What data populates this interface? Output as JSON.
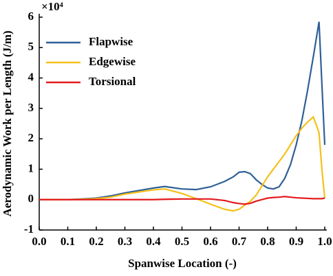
{
  "chart_data": {
    "type": "line",
    "multiplier": "×10⁴",
    "x_label": "Spanwise Location (-)",
    "y_label": "Aerodynamic Work per Length (J/m)",
    "x": [
      0,
      0.05,
      0.1,
      0.15,
      0.2,
      0.25,
      0.3,
      0.35,
      0.4,
      0.44,
      0.5,
      0.55,
      0.6,
      0.65,
      0.68,
      0.7,
      0.72,
      0.74,
      0.76,
      0.78,
      0.8,
      0.82,
      0.84,
      0.86,
      0.88,
      0.9,
      0.92,
      0.94,
      0.96,
      0.98,
      0.99,
      1.0
    ],
    "series": [
      {
        "name": "Flapwise",
        "color": "#2e5f97",
        "values": [
          0,
          0,
          0,
          0.02,
          0.05,
          0.12,
          0.22,
          0.3,
          0.38,
          0.43,
          0.35,
          0.33,
          0.42,
          0.6,
          0.75,
          0.9,
          0.92,
          0.85,
          0.65,
          0.5,
          0.38,
          0.35,
          0.42,
          0.7,
          1.15,
          1.8,
          2.6,
          3.6,
          4.7,
          5.85,
          3.8,
          1.8
        ]
      },
      {
        "name": "Edgewise",
        "color": "#f5c01a",
        "values": [
          0,
          0,
          0,
          0.01,
          0.03,
          0.08,
          0.18,
          0.25,
          0.32,
          0.35,
          0.2,
          0.03,
          -0.15,
          -0.32,
          -0.37,
          -0.32,
          -0.18,
          -0.05,
          0.15,
          0.45,
          0.75,
          1.0,
          1.25,
          1.5,
          1.8,
          2.1,
          2.35,
          2.55,
          2.72,
          2.2,
          1.0,
          0.05
        ]
      },
      {
        "name": "Torsional",
        "color": "#e31a1c",
        "values": [
          0,
          0,
          0,
          0,
          0,
          0,
          0,
          0,
          0,
          0.01,
          0.02,
          0.02,
          0.02,
          -0.03,
          -0.1,
          -0.13,
          -0.15,
          -0.12,
          -0.05,
          0,
          0.05,
          0.07,
          0.08,
          0.1,
          0.08,
          0.06,
          0.05,
          0.04,
          0.03,
          0.03,
          0.03,
          0.05
        ]
      }
    ],
    "xlim": [
      0,
      1
    ],
    "ylim": [
      -1,
      6
    ],
    "xticks": [
      {
        "value": 0,
        "label": "0.0"
      },
      0.1,
      0.2,
      0.3,
      0.4,
      0.5,
      0.6,
      0.7,
      0.8,
      0.9,
      {
        "value": 1,
        "label": "1.0"
      }
    ],
    "yticks": [
      -1,
      0,
      1,
      2,
      3,
      4,
      5,
      6
    ],
    "legend": "upper-left"
  }
}
